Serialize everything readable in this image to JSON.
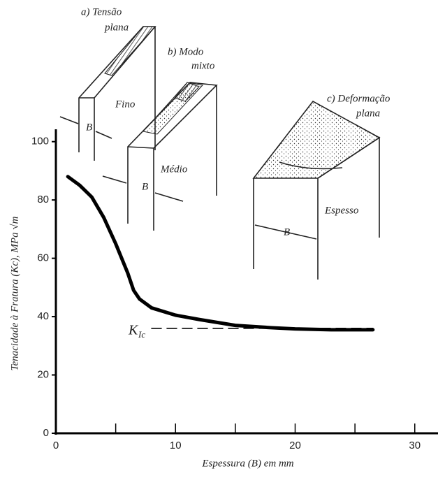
{
  "chart_data": {
    "type": "line",
    "x_label": "Espessura (B) em mm",
    "y_label": "Tenacidade à Fratura  (Kc),  MPa √m",
    "xlim": [
      0,
      32
    ],
    "ylim": [
      0,
      104
    ],
    "xticks": [
      0,
      10,
      20,
      30
    ],
    "xminor_ticks": [
      5,
      15,
      25
    ],
    "yticks": [
      0,
      20,
      40,
      60,
      80,
      100
    ],
    "series": [
      {
        "color": "#000000",
        "x": [
          1,
          2,
          3,
          4,
          5,
          6,
          6.5,
          7,
          8,
          10,
          12,
          15,
          18,
          20,
          23,
          26.5
        ],
        "values": [
          88,
          85,
          81,
          74,
          65,
          55,
          49,
          46,
          43,
          40.5,
          39,
          37,
          36.2,
          35.8,
          35.5,
          35.5
        ]
      },
      {
        "color": "#000000",
        "dashed": true,
        "x": [
          8,
          26.5
        ],
        "values": [
          36,
          36
        ]
      }
    ],
    "annotations": [
      "K",
      "Ic",
      "a) Tensão",
      "plana",
      "b) Modo",
      "mixto",
      "c) Deformação",
      "plana",
      "Fino",
      "Médio",
      "Espesso",
      "B",
      "B",
      "B"
    ]
  }
}
